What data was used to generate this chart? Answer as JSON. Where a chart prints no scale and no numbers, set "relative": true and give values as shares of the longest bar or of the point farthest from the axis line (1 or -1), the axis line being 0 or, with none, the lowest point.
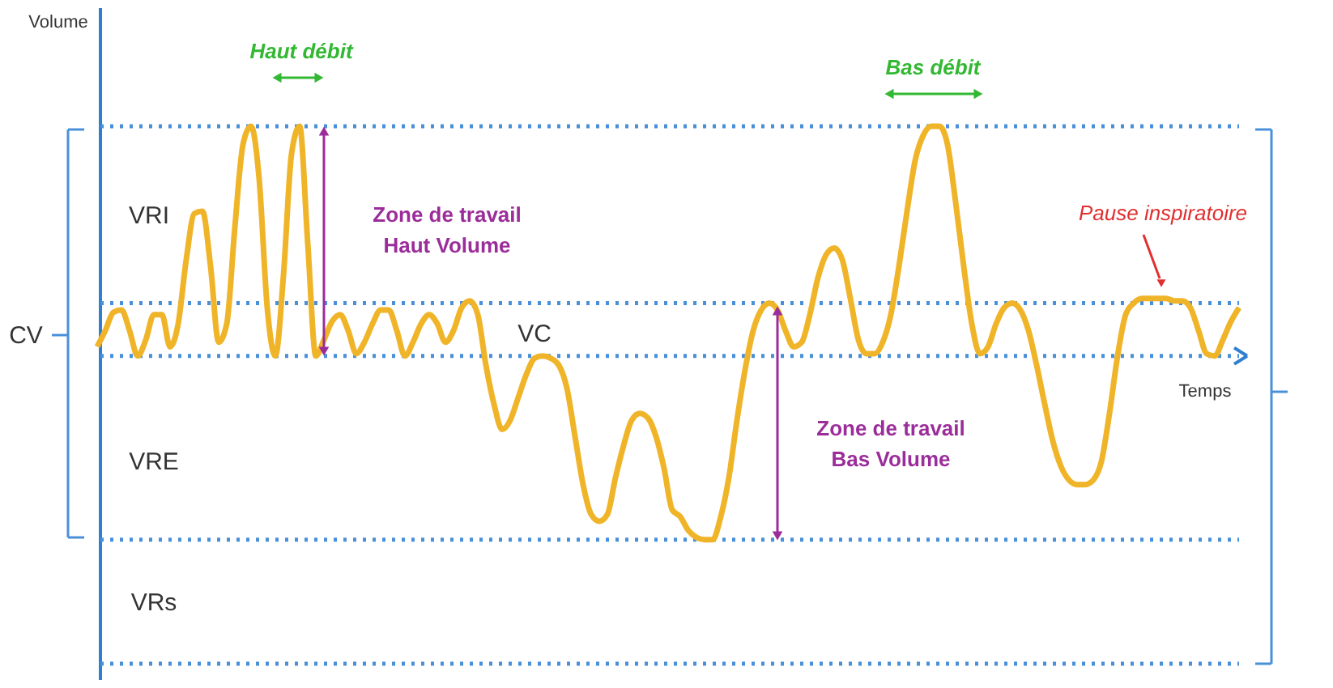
{
  "chart_data": {
    "type": "line",
    "relative": true,
    "xlabel": "Temps",
    "categories": [
      null,
      null,
      null,
      null,
      null,
      null,
      null,
      null,
      null,
      null,
      null,
      null,
      null,
      null,
      null,
      null,
      null,
      null,
      null,
      null,
      null,
      null,
      null,
      null,
      null,
      null,
      null,
      null,
      null,
      null,
      null,
      null,
      null,
      null,
      null,
      null,
      null,
      null,
      null,
      null,
      null,
      null,
      null,
      null,
      null,
      null,
      null,
      null,
      null,
      null,
      null,
      null,
      null,
      null,
      null,
      null,
      null,
      null,
      null,
      null,
      null,
      null,
      null,
      null,
      null,
      null,
      null,
      null,
      null,
      null,
      null,
      null,
      null,
      null,
      null,
      null,
      null,
      null,
      null,
      null,
      null,
      null,
      null,
      null,
      null,
      null,
      null,
      null,
      null,
      null,
      null,
      null,
      null,
      null,
      null,
      null,
      null,
      null,
      null,
      null,
      null,
      null,
      null,
      null,
      null,
      null,
      null,
      null,
      null,
      null,
      null,
      null,
      null,
      null,
      null,
      null,
      null,
      null,
      null,
      null,
      null,
      null,
      null,
      null,
      null,
      null,
      null,
      null,
      null,
      null,
      null,
      null,
      null,
      null,
      null,
      null,
      null,
      null,
      null,
      null,
      null,
      null
    ],
    "series": [
      {
        "color": "#f0b429",
        "values": [
          0.04,
          0.11,
          0.19,
          0.2,
          0.11,
          0,
          0.07,
          0.18,
          0.18,
          0.04,
          0.14,
          0.42,
          0.62,
          0.63,
          0.39,
          0.06,
          0.14,
          0.56,
          0.92,
          1,
          0.77,
          0.21,
          0,
          0.35,
          0.88,
          1,
          0.49,
          0,
          0.07,
          0.15,
          0.18,
          0.11,
          0.01,
          0.06,
          0.14,
          0.2,
          0.2,
          0.11,
          0,
          0.06,
          0.14,
          0.18,
          0.14,
          0.06,
          0.11,
          0.21,
          0.24,
          0.18,
          -0.04,
          -0.21,
          -0.32,
          -0.28,
          -0.18,
          -0.08,
          -0.01,
          0,
          -0.01,
          -0.04,
          -0.14,
          -0.35,
          -0.56,
          -0.69,
          -0.72,
          -0.69,
          -0.53,
          -0.39,
          -0.28,
          -0.25,
          -0.27,
          -0.35,
          -0.49,
          -0.67,
          -0.7,
          -0.76,
          -0.79,
          -0.8,
          -0.8,
          -0.7,
          -0.53,
          -0.28,
          -0.06,
          0.11,
          0.2,
          0.23,
          0.2,
          0.11,
          0.04,
          0.06,
          0.18,
          0.34,
          0.44,
          0.47,
          0.42,
          0.25,
          0.07,
          0.01,
          0.01,
          0.06,
          0.18,
          0.39,
          0.63,
          0.85,
          0.96,
          1,
          1,
          0.92,
          0.67,
          0.39,
          0.14,
          0.01,
          0.04,
          0.14,
          0.21,
          0.23,
          0.2,
          0.11,
          -0.04,
          -0.21,
          -0.37,
          -0.48,
          -0.54,
          -0.56,
          -0.56,
          -0.54,
          -0.46,
          -0.25,
          0,
          0.18,
          0.23,
          0.25,
          0.25,
          0.25,
          0.25,
          0.24,
          0.24,
          0.21,
          0.11,
          0.01,
          0,
          0.07,
          0.15,
          0.21
        ]
      }
    ],
    "ref_lines": [
      {
        "axis": "y",
        "value": 1,
        "color": "#4a90d9",
        "line_style": "dotted"
      },
      {
        "axis": "y",
        "value": 0.23,
        "color": "#4a90d9",
        "line_style": "dotted"
      },
      {
        "axis": "y",
        "value": 0,
        "color": "#4a90d9",
        "line_style": "dotted"
      },
      {
        "axis": "y",
        "value": -0.8,
        "color": "#4a90d9",
        "line_style": "dotted"
      },
      {
        "axis": "y",
        "value": -1.34,
        "color": "#4a90d9",
        "line_style": "dotted"
      }
    ],
    "annotations": [
      "Volume",
      "Haut débit",
      "Bas débit",
      "VRI",
      "Zone de travail\nHaut Volume",
      "Pause inspiratoire",
      "VC",
      "CV",
      "VRE",
      "Zone de travail\nBas Volume",
      "VRs"
    ]
  }
}
